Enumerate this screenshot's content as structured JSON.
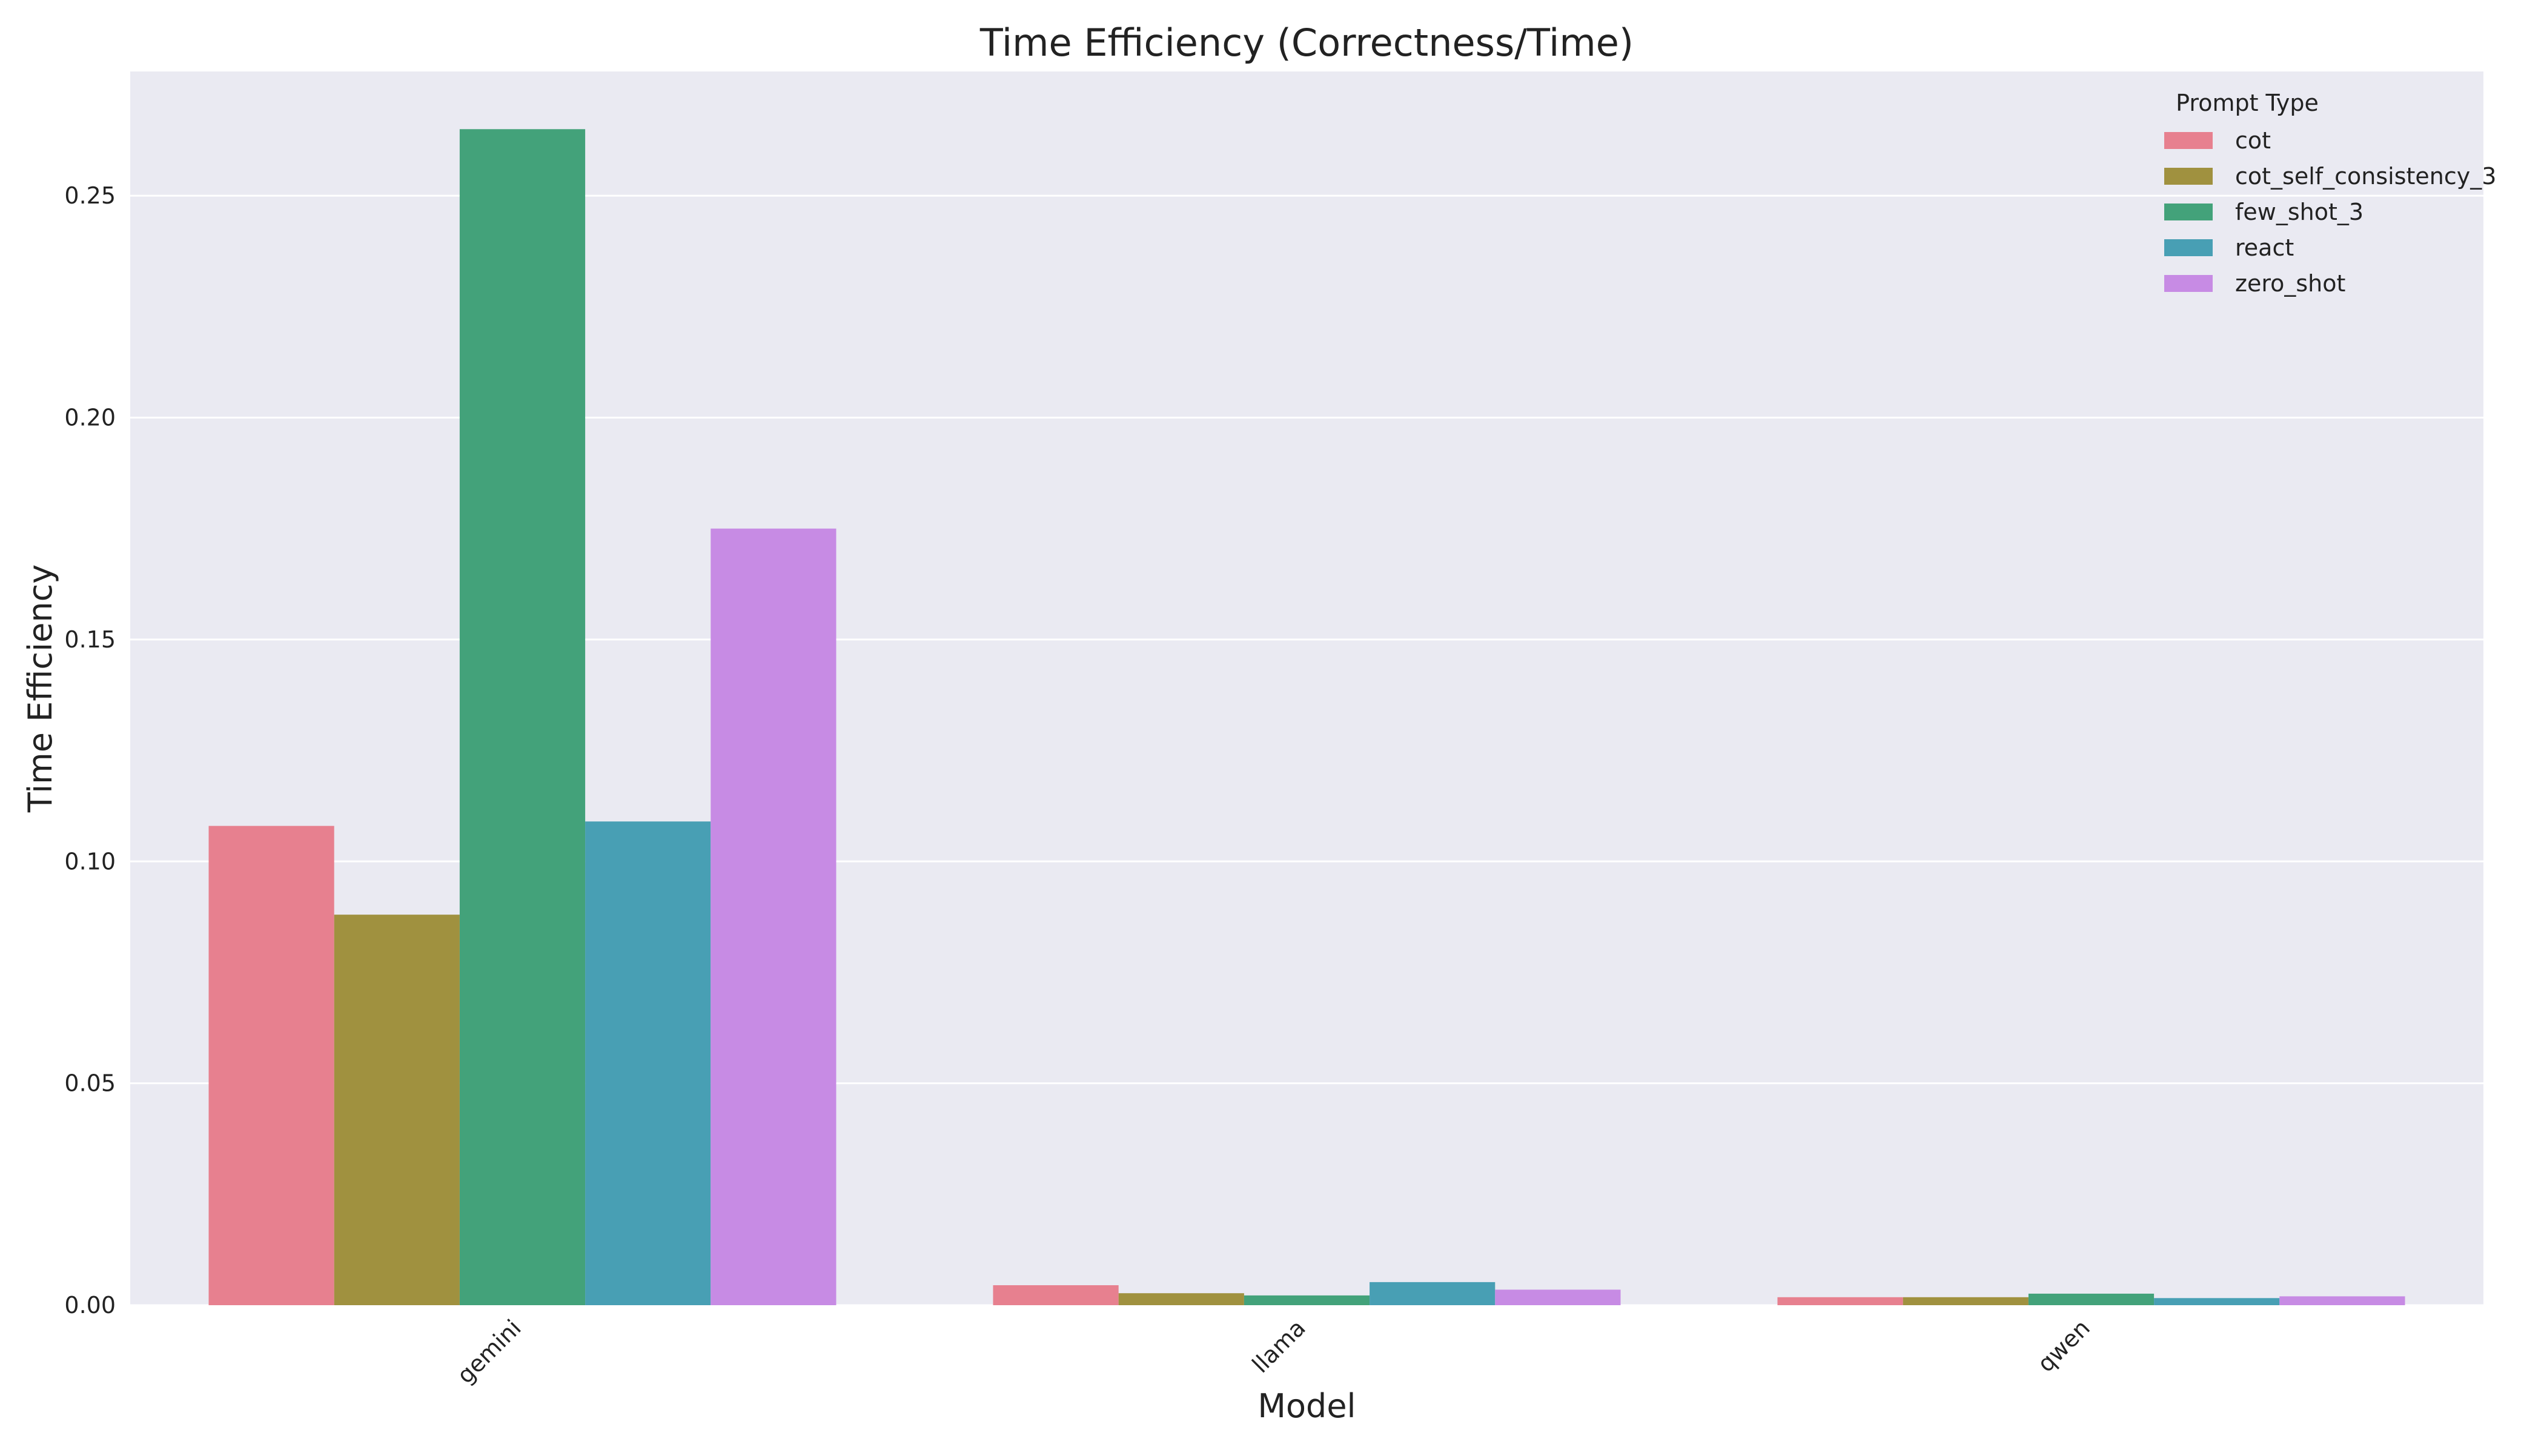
{
  "chart_data": {
    "type": "bar",
    "title": "Time Efficiency (Correctness/Time)",
    "xlabel": "Model",
    "ylabel": "Time Efficiency",
    "categories": [
      "gemini",
      "llama",
      "qwen"
    ],
    "ylim": [
      0,
      0.278
    ],
    "yticks": [
      0.0,
      0.05,
      0.1,
      0.15,
      0.2,
      0.25
    ],
    "ytick_labels": [
      "0.00",
      "0.05",
      "0.10",
      "0.15",
      "0.20",
      "0.25"
    ],
    "grid": true,
    "legend": {
      "title": "Prompt Type",
      "placement": "top-right"
    },
    "series": [
      {
        "name": "cot",
        "color": "#e7808f",
        "values": [
          0.108,
          0.0045,
          0.0018
        ]
      },
      {
        "name": "cot_self_consistency_3",
        "color": "#a0913f",
        "values": [
          0.088,
          0.0027,
          0.0018
        ]
      },
      {
        "name": "few_shot_3",
        "color": "#43a27a",
        "values": [
          0.265,
          0.0022,
          0.0026
        ]
      },
      {
        "name": "react",
        "color": "#489fb4",
        "values": [
          0.109,
          0.0052,
          0.0016
        ]
      },
      {
        "name": "zero_shot",
        "color": "#c78be4",
        "values": [
          0.175,
          0.0035,
          0.002
        ]
      }
    ],
    "plot_background": "#eaeaf2",
    "grid_color": "#ffffff"
  }
}
